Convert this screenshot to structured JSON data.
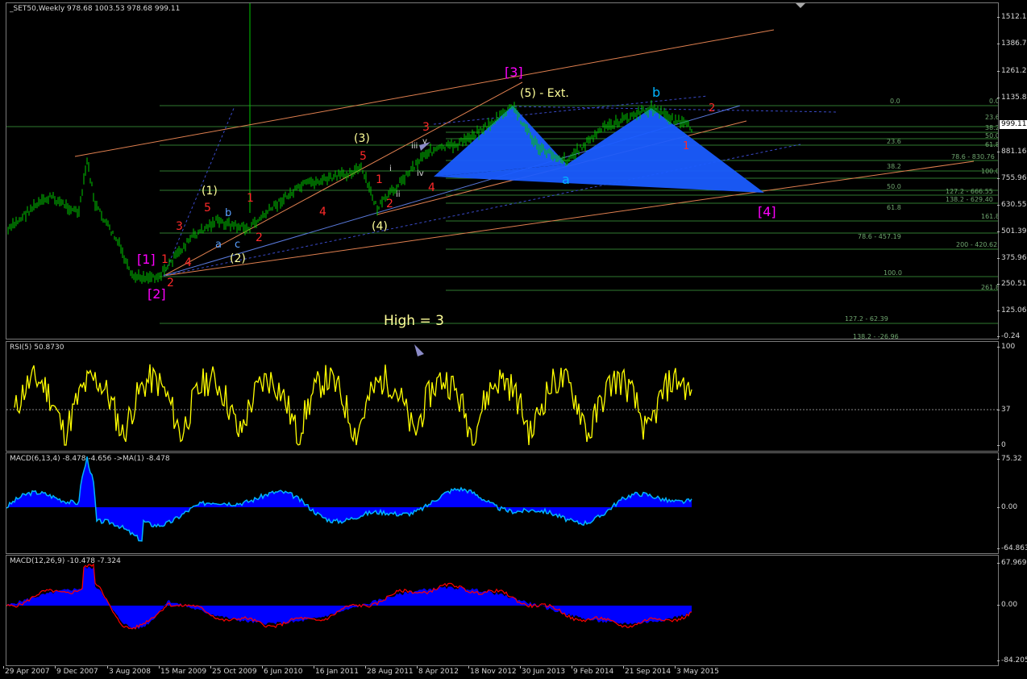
{
  "main": {
    "title": "_SET50,Weekly  978.68 1003.53 978.68 999.11",
    "current_price": "999.11",
    "axis_ticks": [
      "1512.15",
      "1386.70",
      "1261.25",
      "1135.80",
      "881.16",
      "755.96",
      "630.55",
      "501.39",
      "375.96",
      "250.51",
      "125.06",
      "-0.24"
    ],
    "annotation": "High = 3",
    "waves": {
      "w1_pink": "[1]",
      "w2_pink": "[2]",
      "w3_pink": "[3]",
      "w4_pink": "[4]",
      "y1": "(1)",
      "y2": "(2)",
      "y3": "(3)",
      "y4": "(4)",
      "y5": "(5) - Ext.",
      "c_a": "a",
      "c_b": "b",
      "c_c": "c",
      "b_big": "b",
      "a_big": "a",
      "r1": "1",
      "r2": "2",
      "r3": "3",
      "r4": "4",
      "r5": "5",
      "s_i": "i",
      "s_ii": "ii",
      "s_iii": "iii",
      "s_iv": "iv",
      "s_v": "v"
    },
    "fib_labels": [
      "0.0",
      "0.0",
      "23.6",
      "38.2",
      "50.0",
      "61.8",
      "23.6",
      "78.6 - 830.76",
      "38.2",
      "100.0",
      "50.0",
      "127.2 - 666.55",
      "138.2 - 629.40",
      "61.8",
      "161.8",
      "78.6 - 457.19",
      "200 - 420.62",
      "100.0",
      "261.8",
      "127.2 - 62.39",
      "138.2 - -26.96"
    ]
  },
  "rsi": {
    "title": "RSI(5) 50.8730",
    "axis_ticks": [
      "100",
      "37",
      "0"
    ]
  },
  "macd1": {
    "title": "MACD(6,13,4) -8.478 -4.656  ->MA(1) -8.478",
    "axis_ticks": [
      "75.32",
      "0.00",
      "-64.863"
    ]
  },
  "macd2": {
    "title": "MACD(12,26,9) -10.478 -7.324",
    "axis_ticks": [
      "67.969",
      "0.00",
      "-84.205"
    ]
  },
  "x_axis": [
    "29 Apr 2007",
    "9 Dec 2007",
    "3 Aug 2008",
    "15 Mar 2009",
    "25 Oct 2009",
    "6 Jun 2010",
    "16 Jan 2011",
    "28 Aug 2011",
    "8 Apr 2012",
    "18 Nov 2012",
    "30 Jun 2013",
    "9 Feb 2014",
    "21 Sep 2014",
    "3 May 2015"
  ],
  "colors": {
    "bars": "#00c800",
    "rsi": "#ffff00",
    "macd": "#0000ff",
    "signal": "#ff0000",
    "wave_pink": "#ff00ff",
    "wave_red": "#ff2a2a",
    "wave_yellow": "#ffff99",
    "wave_blue": "#00b4ff"
  }
}
